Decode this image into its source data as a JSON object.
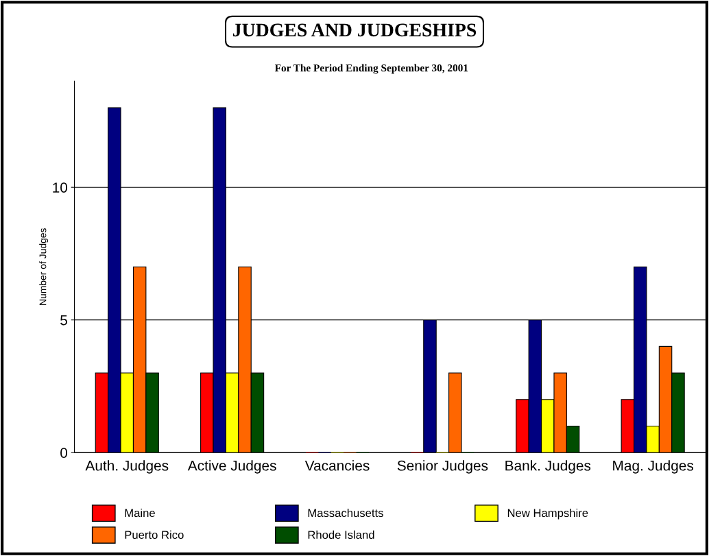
{
  "chart_data": {
    "type": "bar",
    "title": "JUDGES AND JUDGESHIPS",
    "subtitle": "For The Period Ending September 30, 2001",
    "ylabel": "Number of Judges",
    "categories": [
      "Auth. Judges",
      "Active Judges",
      "Vacancies",
      "Senior Judges",
      "Bank. Judges",
      "Mag. Judges"
    ],
    "series": [
      {
        "name": "Maine",
        "color": "#ff0000",
        "values": [
          3,
          3,
          0,
          0,
          2,
          2
        ]
      },
      {
        "name": "Massachusetts",
        "color": "#000080",
        "values": [
          13,
          13,
          0,
          5,
          5,
          7
        ]
      },
      {
        "name": "New Hampshire",
        "color": "#ffff00",
        "values": [
          3,
          3,
          0,
          0,
          2,
          1
        ]
      },
      {
        "name": "Puerto Rico",
        "color": "#ff6600",
        "values": [
          7,
          7,
          0,
          3,
          3,
          4
        ]
      },
      {
        "name": "Rhode Island",
        "color": "#004d00",
        "values": [
          3,
          3,
          0,
          0,
          1,
          3
        ]
      }
    ],
    "ylim": [
      0,
      14
    ],
    "yticks": [
      0,
      5,
      10
    ],
    "grid": "y",
    "legend": "bottom"
  }
}
